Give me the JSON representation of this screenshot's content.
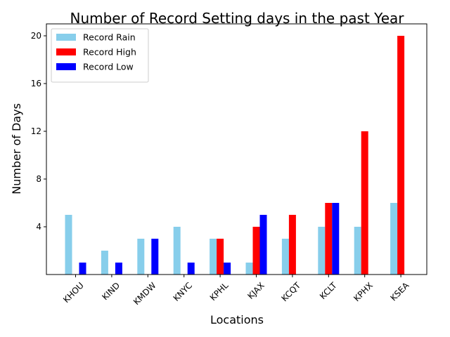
{
  "chart_data": {
    "type": "bar",
    "title": "Number of Record Setting days in the past Year",
    "xlabel": "Locations",
    "ylabel": "Number of Days",
    "categories": [
      "KHOU",
      "KIND",
      "KMDW",
      "KNYC",
      "KPHL",
      "KJAX",
      "KCQT",
      "KCLT",
      "KPHX",
      "KSEA"
    ],
    "series": [
      {
        "name": "Record Rain",
        "color": "#87ceeb",
        "values": [
          5,
          2,
          3,
          4,
          3,
          1,
          3,
          4,
          4,
          6
        ]
      },
      {
        "name": "Record High",
        "color": "#ff0000",
        "values": [
          0,
          0,
          0,
          0,
          3,
          4,
          5,
          6,
          12,
          20
        ]
      },
      {
        "name": "Record Low",
        "color": "#0000ff",
        "values": [
          1,
          1,
          3,
          1,
          1,
          5,
          0,
          6,
          0,
          0
        ]
      }
    ],
    "yticks": [
      4,
      8,
      12,
      16,
      20
    ],
    "ylim": [
      0,
      21
    ],
    "legend": "top-left",
    "grid": false,
    "xtick_rotation": 45
  }
}
